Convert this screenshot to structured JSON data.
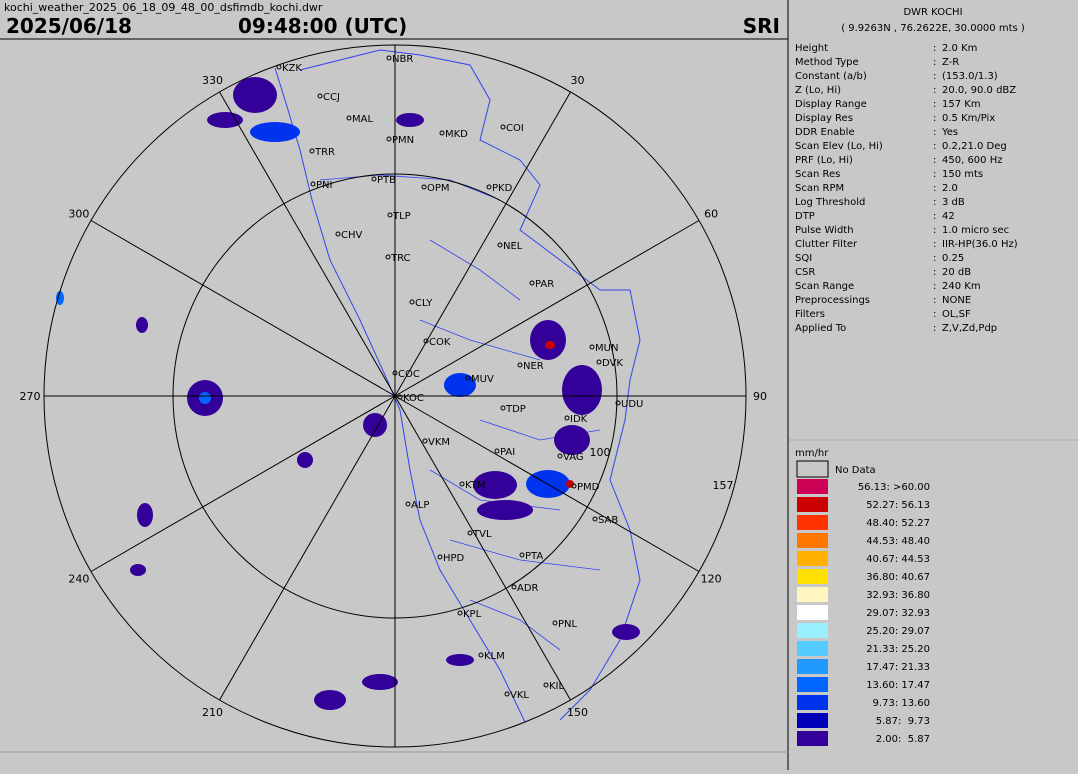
{
  "header": {
    "filename": "kochi_weather_2025_06_18_09_48_00_dsfimdb_kochi.dwr",
    "date": "2025/06/18",
    "time": "09:48:00 (UTC)",
    "product": "SRI"
  },
  "map": {
    "bearings": [
      30,
      60,
      90,
      120,
      150,
      210,
      240,
      270,
      300,
      330
    ],
    "ranges": [
      "100",
      "157"
    ],
    "cities": [
      "NBR",
      "KZK",
      "CCJ",
      "MAL",
      "PMN",
      "MKD",
      "COI",
      "TRR",
      "PNI",
      "PTB",
      "OPM",
      "PKD",
      "TLP",
      "CHV",
      "NEL",
      "TRC",
      "PAR",
      "CLY",
      "COK",
      "MUN",
      "DVK",
      "NER",
      "COC",
      "MUV",
      "KOC",
      "UDU",
      "TDP",
      "IDK",
      "VKM",
      "PAI",
      "VAG",
      "KTM",
      "PMD",
      "ALP",
      "SAB",
      "TVL",
      "HPD",
      "PTA",
      "ADR",
      "KPL",
      "PNL",
      "KLM",
      "KIL",
      "VKL"
    ]
  },
  "info": {
    "station": "DWR KOCHI",
    "location": "( 9.9263N , 76.2622E, 30.0000 mts )",
    "separator": ":",
    "parameters": [
      [
        "Height",
        "2.0 Km"
      ],
      [
        "Method Type",
        "Z-R"
      ],
      [
        "Constant (a/b)",
        "(153.0/1.3)"
      ],
      [
        "Z (Lo, Hi)",
        "20.0, 90.0 dBZ"
      ],
      [
        "Display Range",
        "157 Km"
      ],
      [
        "Display Res",
        "0.5 Km/Pix"
      ],
      [
        "DDR Enable",
        "Yes"
      ],
      [
        "Scan Elev (Lo, Hi)",
        "0.2,21.0 Deg"
      ],
      [
        "PRF (Lo, Hi)",
        "450, 600 Hz"
      ],
      [
        "Scan Res",
        "150 mts"
      ],
      [
        "Scan RPM",
        "2.0"
      ],
      [
        "Log Threshold",
        "3 dB"
      ],
      [
        "DTP",
        "42"
      ],
      [
        "Pulse Width",
        "1.0 micro sec"
      ],
      [
        "Clutter Filter",
        "IIR-HP(36.0 Hz)"
      ],
      [
        "SQI",
        "0.25"
      ],
      [
        "CSR",
        "20 dB"
      ],
      [
        "Scan Range",
        "240 Km"
      ],
      [
        "Preprocessings",
        "NONE"
      ],
      [
        "Filters",
        "OL,SF"
      ],
      [
        "Applied To",
        "Z,V,Zd,Pdp"
      ]
    ]
  },
  "legend": {
    "unit": "mm/hr",
    "no_data": "No Data",
    "classes": [
      {
        "label": "56.13: >60.00",
        "color": "#cc0055"
      },
      {
        "label": "52.27: 56.13",
        "color": "#cc0000"
      },
      {
        "label": "48.40: 52.27",
        "color": "#ff3300"
      },
      {
        "label": "44.53: 48.40",
        "color": "#ff7700"
      },
      {
        "label": "40.67: 44.53",
        "color": "#ffb000"
      },
      {
        "label": "36.80: 40.67",
        "color": "#ffe000"
      },
      {
        "label": "32.93: 36.80",
        "color": "#fff5c0"
      },
      {
        "label": "29.07: 32.93",
        "color": "#ffffff"
      },
      {
        "label": "25.20: 29.07",
        "color": "#99eeff"
      },
      {
        "label": "21.33: 25.20",
        "color": "#55ccff"
      },
      {
        "label": "17.47: 21.33",
        "color": "#2299ff"
      },
      {
        "label": "13.60: 17.47",
        "color": "#0066ff"
      },
      {
        "label": "9.73: 13.60",
        "color": "#0033ee"
      },
      {
        "label": "5.87:  9.73",
        "color": "#0000bb"
      },
      {
        "label": "2.00:  5.87",
        "color": "#330099"
      }
    ]
  }
}
